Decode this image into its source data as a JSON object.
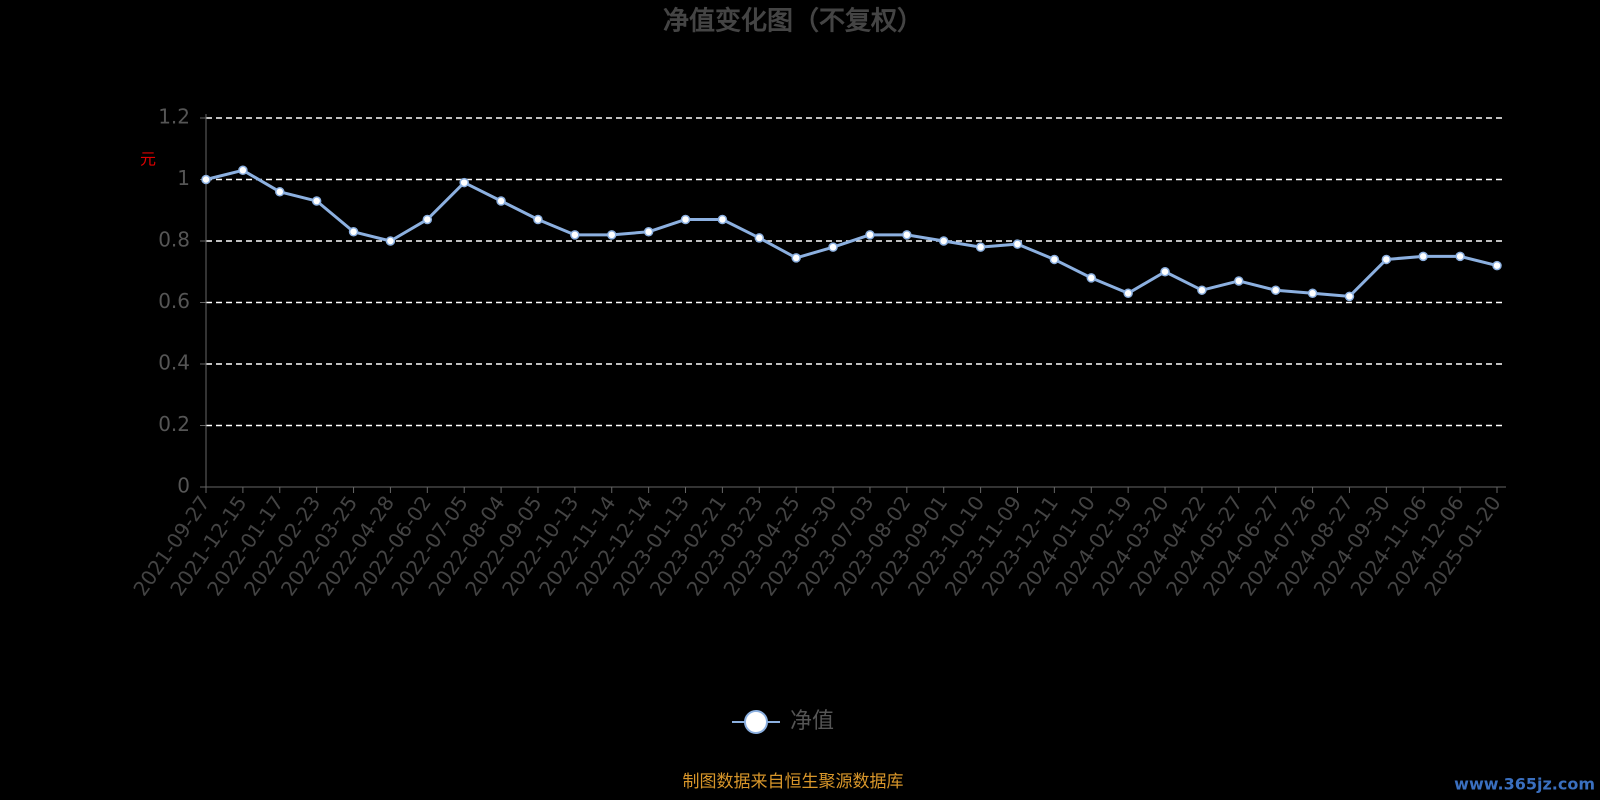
{
  "chart_data": {
    "type": "line",
    "title": "净值变化图（不复权）",
    "y_label": "元",
    "categories": [
      "2021-09-27",
      "2021-12-15",
      "2022-01-17",
      "2022-02-23",
      "2022-03-25",
      "2022-04-28",
      "2022-06-02",
      "2022-07-05",
      "2022-08-04",
      "2022-09-05",
      "2022-10-13",
      "2022-11-14",
      "2022-12-14",
      "2023-01-13",
      "2023-02-21",
      "2023-03-23",
      "2023-04-25",
      "2023-05-30",
      "2023-07-03",
      "2023-08-02",
      "2023-09-01",
      "2023-10-10",
      "2023-11-09",
      "2023-12-11",
      "2024-01-10",
      "2024-02-19",
      "2024-03-20",
      "2024-04-22",
      "2024-05-27",
      "2024-06-27",
      "2024-07-26",
      "2024-08-27",
      "2024-09-30",
      "2024-11-06",
      "2024-12-06",
      "2025-01-20"
    ],
    "series": [
      {
        "name": "净值",
        "color": "#8cb0e0",
        "values": [
          1.0,
          1.03,
          0.96,
          0.93,
          0.83,
          0.8,
          0.87,
          0.99,
          0.93,
          0.87,
          0.82,
          0.82,
          0.83,
          0.87,
          0.87,
          0.81,
          0.745,
          0.78,
          0.82,
          0.82,
          0.8,
          0.78,
          0.79,
          0.74,
          0.68,
          0.63,
          0.7,
          0.64,
          0.67,
          0.64,
          0.63,
          0.62,
          0.74,
          0.75,
          0.75,
          0.72
        ]
      }
    ],
    "ylim": [
      0,
      1.2
    ],
    "yticks": [
      0,
      0.2,
      0.4,
      0.6,
      0.8,
      1,
      1.2
    ],
    "grid": true,
    "legend": "bottom",
    "source": "制图数据来自恒生聚源数据库",
    "watermark": "www.365jz.com"
  }
}
